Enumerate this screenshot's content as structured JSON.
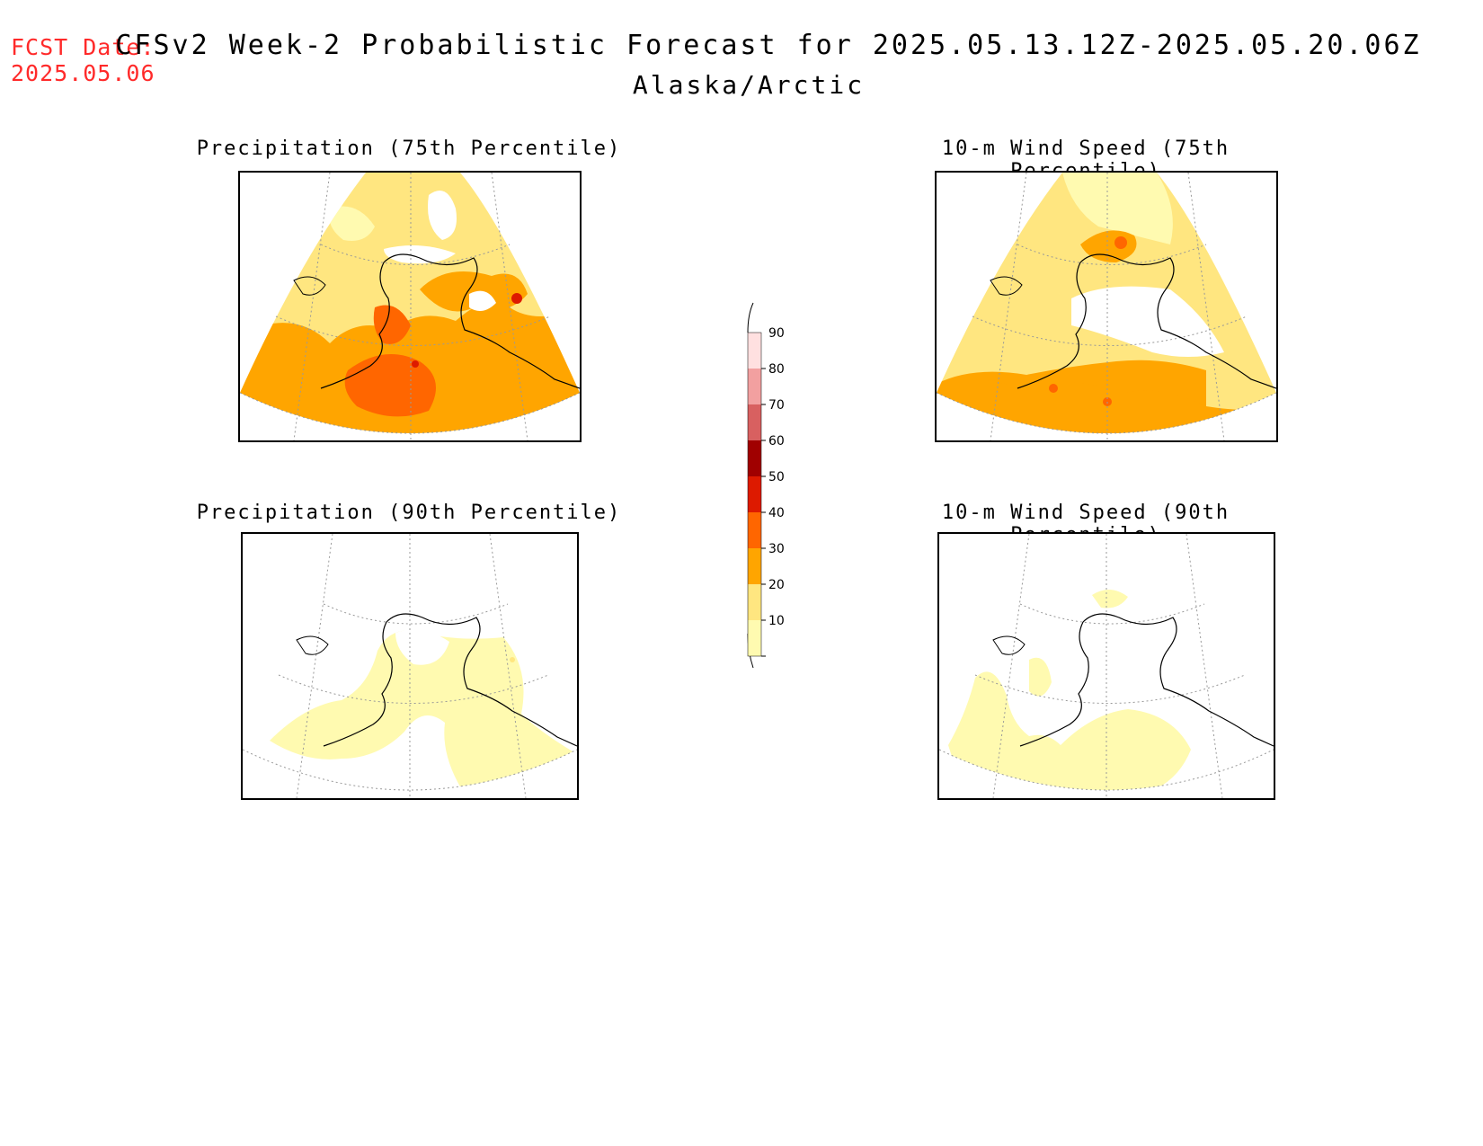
{
  "forecast_date": {
    "label": "FCST Date:",
    "value": "2025.05.06"
  },
  "title": "CFSv2 Week-2 Probabilistic Forecast for 2025.05.13.12Z-2025.05.20.06Z",
  "region": "Alaska/Arctic",
  "panels": [
    {
      "title": "Precipitation (75th Percentile)",
      "category": "precipitation",
      "percentile": 75
    },
    {
      "title": "10-m Wind Speed (75th Percentile)",
      "category": "wind",
      "percentile": 75
    },
    {
      "title": "Precipitation (90th Percentile)",
      "category": "precipitation",
      "percentile": 90
    },
    {
      "title": "10-m Wind Speed (90th Percentile)",
      "category": "wind",
      "percentile": 90
    }
  ],
  "colorbar": {
    "levels": [
      {
        "value": "90",
        "color": "#ffe0e0"
      },
      {
        "value": "80",
        "color": "#f2a0a0"
      },
      {
        "value": "70",
        "color": "#d86060"
      },
      {
        "value": "60",
        "color": "#a00000"
      },
      {
        "value": "50",
        "color": "#dd1a00"
      },
      {
        "value": "40",
        "color": "#ff6600"
      },
      {
        "value": "30",
        "color": "#ffa500"
      },
      {
        "value": "20",
        "color": "#ffe680"
      },
      {
        "value": "10",
        "color": "#fffab0"
      }
    ]
  },
  "colors": {
    "c10": "#fffab0",
    "c20": "#ffe680",
    "c30": "#ffa500",
    "c40": "#ff6600",
    "c50": "#dd1a00",
    "fcst_text": "#ff2a2a"
  }
}
